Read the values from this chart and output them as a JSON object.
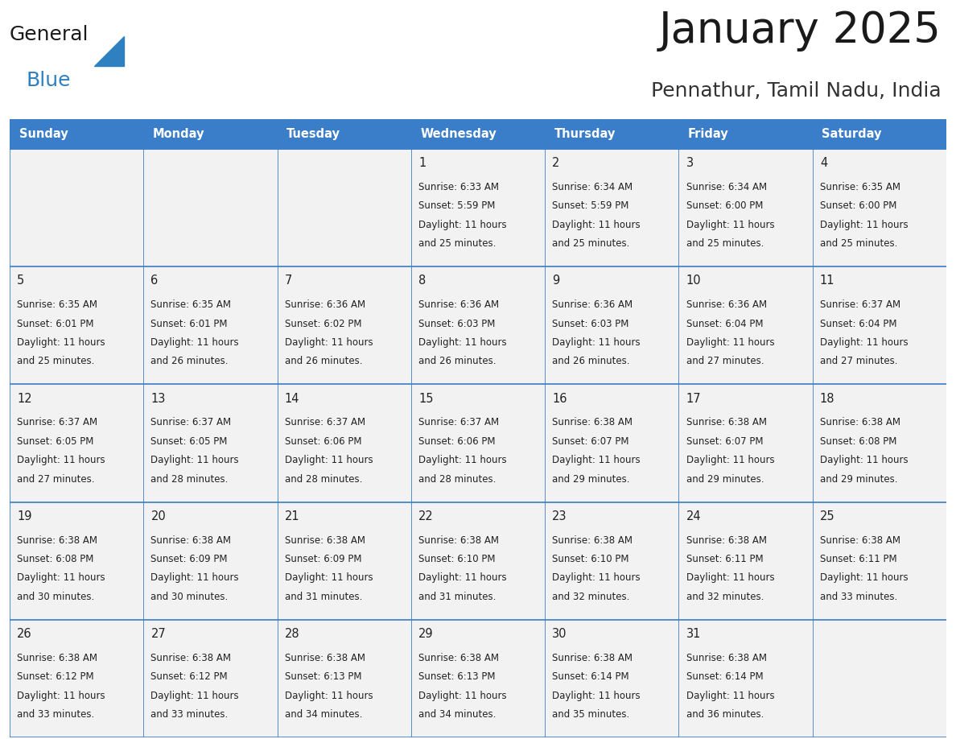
{
  "title": "January 2025",
  "subtitle": "Pennathur, Tamil Nadu, India",
  "days_of_week": [
    "Sunday",
    "Monday",
    "Tuesday",
    "Wednesday",
    "Thursday",
    "Friday",
    "Saturday"
  ],
  "header_bg": "#3A7DC9",
  "header_text_color": "#FFFFFF",
  "cell_bg": "#F2F2F2",
  "cell_text_color": "#222222",
  "day_num_color": "#222222",
  "border_color": "#3A7DC9",
  "row_line_color": "#3A7DC9",
  "title_color": "#1a1a1a",
  "subtitle_color": "#333333",
  "logo_general_color": "#1a1a1a",
  "logo_blue_color": "#2E80C0",
  "calendar_data": [
    [
      {
        "day": null,
        "sunrise": null,
        "sunset": null,
        "daylight": null
      },
      {
        "day": null,
        "sunrise": null,
        "sunset": null,
        "daylight": null
      },
      {
        "day": null,
        "sunrise": null,
        "sunset": null,
        "daylight": null
      },
      {
        "day": 1,
        "sunrise": "6:33 AM",
        "sunset": "5:59 PM",
        "daylight": "11 hours and 25 minutes."
      },
      {
        "day": 2,
        "sunrise": "6:34 AM",
        "sunset": "5:59 PM",
        "daylight": "11 hours and 25 minutes."
      },
      {
        "day": 3,
        "sunrise": "6:34 AM",
        "sunset": "6:00 PM",
        "daylight": "11 hours and 25 minutes."
      },
      {
        "day": 4,
        "sunrise": "6:35 AM",
        "sunset": "6:00 PM",
        "daylight": "11 hours and 25 minutes."
      }
    ],
    [
      {
        "day": 5,
        "sunrise": "6:35 AM",
        "sunset": "6:01 PM",
        "daylight": "11 hours and 25 minutes."
      },
      {
        "day": 6,
        "sunrise": "6:35 AM",
        "sunset": "6:01 PM",
        "daylight": "11 hours and 26 minutes."
      },
      {
        "day": 7,
        "sunrise": "6:36 AM",
        "sunset": "6:02 PM",
        "daylight": "11 hours and 26 minutes."
      },
      {
        "day": 8,
        "sunrise": "6:36 AM",
        "sunset": "6:03 PM",
        "daylight": "11 hours and 26 minutes."
      },
      {
        "day": 9,
        "sunrise": "6:36 AM",
        "sunset": "6:03 PM",
        "daylight": "11 hours and 26 minutes."
      },
      {
        "day": 10,
        "sunrise": "6:36 AM",
        "sunset": "6:04 PM",
        "daylight": "11 hours and 27 minutes."
      },
      {
        "day": 11,
        "sunrise": "6:37 AM",
        "sunset": "6:04 PM",
        "daylight": "11 hours and 27 minutes."
      }
    ],
    [
      {
        "day": 12,
        "sunrise": "6:37 AM",
        "sunset": "6:05 PM",
        "daylight": "11 hours and 27 minutes."
      },
      {
        "day": 13,
        "sunrise": "6:37 AM",
        "sunset": "6:05 PM",
        "daylight": "11 hours and 28 minutes."
      },
      {
        "day": 14,
        "sunrise": "6:37 AM",
        "sunset": "6:06 PM",
        "daylight": "11 hours and 28 minutes."
      },
      {
        "day": 15,
        "sunrise": "6:37 AM",
        "sunset": "6:06 PM",
        "daylight": "11 hours and 28 minutes."
      },
      {
        "day": 16,
        "sunrise": "6:38 AM",
        "sunset": "6:07 PM",
        "daylight": "11 hours and 29 minutes."
      },
      {
        "day": 17,
        "sunrise": "6:38 AM",
        "sunset": "6:07 PM",
        "daylight": "11 hours and 29 minutes."
      },
      {
        "day": 18,
        "sunrise": "6:38 AM",
        "sunset": "6:08 PM",
        "daylight": "11 hours and 29 minutes."
      }
    ],
    [
      {
        "day": 19,
        "sunrise": "6:38 AM",
        "sunset": "6:08 PM",
        "daylight": "11 hours and 30 minutes."
      },
      {
        "day": 20,
        "sunrise": "6:38 AM",
        "sunset": "6:09 PM",
        "daylight": "11 hours and 30 minutes."
      },
      {
        "day": 21,
        "sunrise": "6:38 AM",
        "sunset": "6:09 PM",
        "daylight": "11 hours and 31 minutes."
      },
      {
        "day": 22,
        "sunrise": "6:38 AM",
        "sunset": "6:10 PM",
        "daylight": "11 hours and 31 minutes."
      },
      {
        "day": 23,
        "sunrise": "6:38 AM",
        "sunset": "6:10 PM",
        "daylight": "11 hours and 32 minutes."
      },
      {
        "day": 24,
        "sunrise": "6:38 AM",
        "sunset": "6:11 PM",
        "daylight": "11 hours and 32 minutes."
      },
      {
        "day": 25,
        "sunrise": "6:38 AM",
        "sunset": "6:11 PM",
        "daylight": "11 hours and 33 minutes."
      }
    ],
    [
      {
        "day": 26,
        "sunrise": "6:38 AM",
        "sunset": "6:12 PM",
        "daylight": "11 hours and 33 minutes."
      },
      {
        "day": 27,
        "sunrise": "6:38 AM",
        "sunset": "6:12 PM",
        "daylight": "11 hours and 33 minutes."
      },
      {
        "day": 28,
        "sunrise": "6:38 AM",
        "sunset": "6:13 PM",
        "daylight": "11 hours and 34 minutes."
      },
      {
        "day": 29,
        "sunrise": "6:38 AM",
        "sunset": "6:13 PM",
        "daylight": "11 hours and 34 minutes."
      },
      {
        "day": 30,
        "sunrise": "6:38 AM",
        "sunset": "6:14 PM",
        "daylight": "11 hours and 35 minutes."
      },
      {
        "day": 31,
        "sunrise": "6:38 AM",
        "sunset": "6:14 PM",
        "daylight": "11 hours and 36 minutes."
      },
      {
        "day": null,
        "sunrise": null,
        "sunset": null,
        "daylight": null
      }
    ]
  ]
}
